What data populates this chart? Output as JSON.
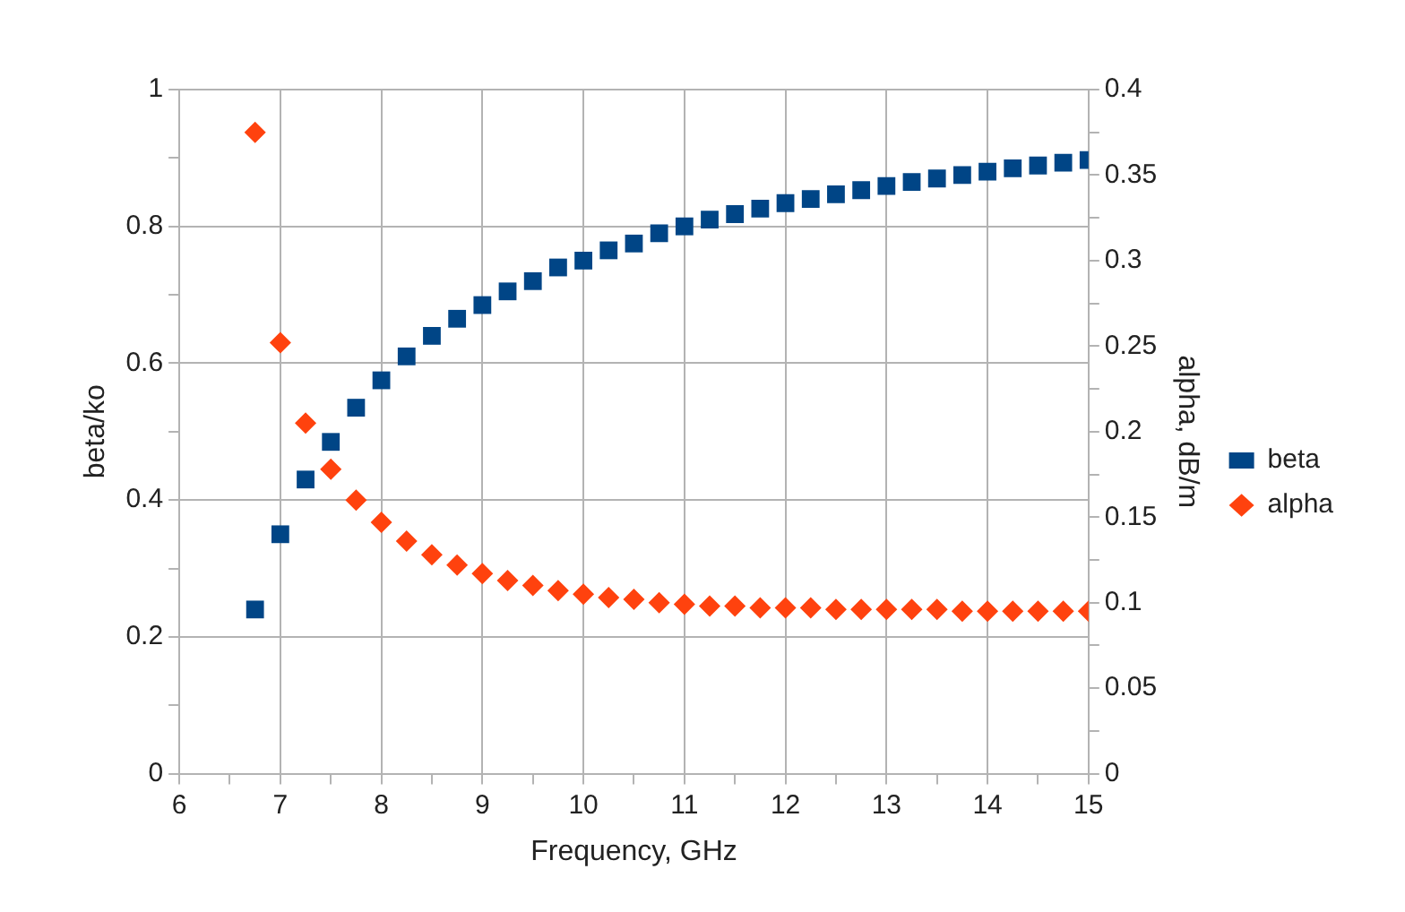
{
  "chart_data": {
    "type": "scatter",
    "xlabel": "Frequency, GHz",
    "ylabel": "beta/ko",
    "y2label": "alpha, dB/m",
    "x": [
      6.75,
      7,
      7.25,
      7.5,
      7.75,
      8,
      8.25,
      8.5,
      8.75,
      9,
      9.25,
      9.5,
      9.75,
      10,
      10.25,
      10.5,
      10.75,
      11,
      11.25,
      11.5,
      11.75,
      12,
      12.25,
      12.5,
      12.75,
      13,
      13.25,
      13.5,
      13.75,
      14,
      14.25,
      14.5,
      14.75,
      15
    ],
    "series": [
      {
        "name": "beta",
        "color": "#004586",
        "marker": "square",
        "values": [
          0.24,
          0.35,
          0.43,
          0.485,
          0.535,
          0.575,
          0.61,
          0.64,
          0.665,
          0.685,
          0.705,
          0.72,
          0.74,
          0.75,
          0.765,
          0.775,
          0.79,
          0.8,
          0.81,
          0.818,
          0.826,
          0.834,
          0.84,
          0.847,
          0.853,
          0.859,
          0.865,
          0.87,
          0.875,
          0.88,
          0.885,
          0.889,
          0.893,
          0.897
        ]
      },
      {
        "name": "alpha",
        "color": "#ff420e",
        "marker": "diamond",
        "axis": "y2",
        "values": [
          0.375,
          0.252,
          0.205,
          0.178,
          0.16,
          0.147,
          0.136,
          0.128,
          0.122,
          0.117,
          0.113,
          0.11,
          0.107,
          0.105,
          0.103,
          0.102,
          0.1,
          0.099,
          0.098,
          0.098,
          0.097,
          0.097,
          0.097,
          0.096,
          0.096,
          0.096,
          0.096,
          0.096,
          0.095,
          0.095,
          0.095,
          0.095,
          0.095,
          0.095
        ]
      }
    ],
    "xlim": [
      6,
      15
    ],
    "xticks": [
      6,
      {
        "value": 6.5,
        "label": null
      },
      7,
      {
        "value": 7.5,
        "label": null
      },
      8,
      {
        "value": 8.5,
        "label": null
      },
      9,
      {
        "value": 9.5,
        "label": null
      },
      10,
      {
        "value": 10.5,
        "label": null
      },
      11,
      {
        "value": 11.5,
        "label": null
      },
      12,
      {
        "value": 12.5,
        "label": null
      },
      13,
      {
        "value": 13.5,
        "label": null
      },
      14,
      {
        "value": 14.5,
        "label": null
      },
      15
    ],
    "ylim": [
      0,
      1
    ],
    "yticks": [
      0,
      {
        "value": 0.1,
        "label": null
      },
      0.2,
      {
        "value": 0.3,
        "label": null
      },
      0.4,
      {
        "value": 0.5,
        "label": null
      },
      0.6,
      {
        "value": 0.7,
        "label": null
      },
      0.8,
      {
        "value": 0.9,
        "label": null
      },
      1
    ],
    "y2lim": [
      0,
      0.4
    ],
    "y2ticks": [
      0,
      {
        "value": 0.025,
        "label": null
      },
      0.05,
      {
        "value": 0.075,
        "label": null
      },
      0.1,
      {
        "value": 0.125,
        "label": null
      },
      0.15,
      {
        "value": 0.175,
        "label": null
      },
      0.2,
      {
        "value": 0.225,
        "label": null
      },
      0.25,
      {
        "value": 0.275,
        "label": null
      },
      0.3,
      {
        "value": 0.325,
        "label": null
      },
      0.35,
      {
        "value": 0.375,
        "label": null
      },
      0.4
    ],
    "grid": true,
    "legend": "right"
  }
}
